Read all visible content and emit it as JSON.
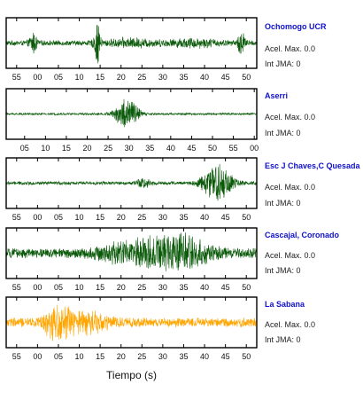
{
  "colors": {
    "station_name": "#1010cc",
    "trace_default": "#0a5a0a",
    "trace_highlight": "#ffa500",
    "frame": "#000000"
  },
  "chart_data": {
    "type": "line",
    "xlabel": "Tiempo (s)",
    "panels": [
      {
        "name": "Ochomogo UCR",
        "accel_label": "Acel. Max.",
        "accel_value": "0.0",
        "jma_label": "Int JMA:",
        "jma_value": "0",
        "color": "#0a5a0a",
        "ticks": [
          "55",
          "00",
          "05",
          "10",
          "15",
          "20",
          "25",
          "30",
          "35",
          "40",
          "45",
          "50"
        ],
        "tick_offset_s": 2.5,
        "noise": 0.12,
        "events": [
          {
            "t": 6.5,
            "amp": 0.45,
            "dur": 1.2
          },
          {
            "t": 21.8,
            "amp": 0.9,
            "dur": 1.0
          },
          {
            "t": 56.3,
            "amp": 0.55,
            "dur": 1.2
          },
          {
            "t": 30,
            "amp": 0.15,
            "dur": 8
          },
          {
            "t": 45,
            "amp": 0.15,
            "dur": 8
          }
        ]
      },
      {
        "name": "Aserri",
        "accel_label": "Acel. Max.",
        "accel_value": "0.0",
        "jma_label": "Int JMA:",
        "jma_value": "0",
        "color": "#0a5a0a",
        "ticks": [
          "05",
          "10",
          "15",
          "20",
          "25",
          "30",
          "35",
          "40",
          "45",
          "50",
          "55",
          "00"
        ],
        "tick_offset_s": 4.4,
        "noise": 0.05,
        "events": [
          {
            "t": 29.0,
            "amp": 0.8,
            "dur": 3.5
          }
        ]
      },
      {
        "name": "Esc J Chaves,C Quesada",
        "accel_label": "Acel. Max.",
        "accel_value": "0.0",
        "jma_label": "Int JMA:",
        "jma_value": "0",
        "color": "#0a5a0a",
        "ticks": [
          "55",
          "00",
          "05",
          "10",
          "15",
          "20",
          "25",
          "30",
          "35",
          "40",
          "45",
          "50"
        ],
        "tick_offset_s": 2.5,
        "noise": 0.08,
        "events": [
          {
            "t": 33,
            "amp": 0.2,
            "dur": 2.5
          },
          {
            "t": 50.5,
            "amp": 0.95,
            "dur": 4.5
          }
        ]
      },
      {
        "name": "Cascajal, Coronado",
        "accel_label": "Acel. Max.",
        "accel_value": "0.0",
        "jma_label": "Int JMA:",
        "jma_value": "0",
        "color": "#0a5a0a",
        "ticks": [
          "55",
          "00",
          "05",
          "10",
          "15",
          "20",
          "25",
          "30",
          "35",
          "40",
          "45",
          "50"
        ],
        "tick_offset_s": 2.5,
        "noise": 0.22,
        "events": [
          {
            "t": 40,
            "amp": 0.9,
            "dur": 10
          },
          {
            "t": 28,
            "amp": 0.35,
            "dur": 8
          }
        ]
      },
      {
        "name": "La Sabana",
        "accel_label": "Acel. Max.",
        "accel_value": "0.0",
        "jma_label": "Int JMA:",
        "jma_value": "0",
        "color": "#ffa500",
        "ticks": [
          "55",
          "00",
          "05",
          "10",
          "15",
          "20",
          "25",
          "30",
          "35",
          "40",
          "45",
          "50"
        ],
        "tick_offset_s": 2.5,
        "noise": 0.22,
        "events": [
          {
            "t": 12.5,
            "amp": 0.9,
            "dur": 4
          },
          {
            "t": 20,
            "amp": 0.4,
            "dur": 6
          }
        ]
      }
    ]
  }
}
